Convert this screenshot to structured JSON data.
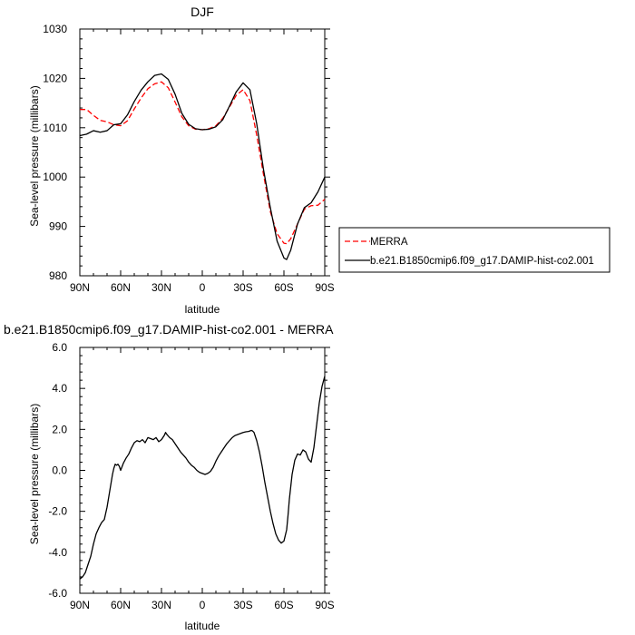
{
  "chart_data": [
    {
      "type": "line",
      "title": "DJF",
      "xlabel": "latitude",
      "ylabel": "Sea-level pressure (millibars)",
      "xlim": [
        90,
        -90
      ],
      "ylim": [
        980,
        1030
      ],
      "x_ticks": [
        90,
        60,
        30,
        0,
        -30,
        -60,
        -90
      ],
      "x_tick_labels": [
        "90N",
        "60N",
        "30N",
        "0",
        "30S",
        "60S",
        "90S"
      ],
      "y_ticks": [
        980,
        990,
        1000,
        1010,
        1020,
        1030
      ],
      "y_tick_labels": [
        "980",
        "990",
        "1000",
        "1010",
        "1020",
        "1030"
      ],
      "legend_position": "right",
      "series": [
        {
          "name": "MERRA",
          "color": "#ff0000",
          "dash": "dashed",
          "x": [
            90,
            85,
            80,
            75,
            70,
            65,
            60,
            55,
            50,
            45,
            40,
            35,
            30,
            25,
            20,
            15,
            10,
            5,
            0,
            -5,
            -10,
            -15,
            -20,
            -25,
            -30,
            -35,
            -40,
            -45,
            -50,
            -55,
            -60,
            -62,
            -65,
            -70,
            -75,
            -80,
            -85,
            -90
          ],
          "y": [
            1013.7,
            1013.7,
            1012.5,
            1011.5,
            1011.2,
            1010.6,
            1010.4,
            1011.4,
            1013.8,
            1016.0,
            1017.9,
            1018.9,
            1019.3,
            1018.1,
            1015.2,
            1012.2,
            1010.4,
            1009.7,
            1009.6,
            1009.8,
            1010.4,
            1011.9,
            1014.2,
            1016.6,
            1017.7,
            1015.5,
            1008.5,
            1000.5,
            993.0,
            988.5,
            986.6,
            986.5,
            987.5,
            990.5,
            993.5,
            994.2,
            994.3,
            995.5
          ]
        },
        {
          "name": "b.e21.B1850cmip6.f09_g17.DAMIP-hist-co2.001",
          "color": "#000000",
          "dash": "solid",
          "x": [
            90,
            85,
            80,
            75,
            70,
            65,
            60,
            55,
            50,
            45,
            40,
            35,
            30,
            25,
            20,
            15,
            10,
            5,
            0,
            -5,
            -10,
            -15,
            -20,
            -25,
            -30,
            -35,
            -40,
            -45,
            -50,
            -55,
            -60,
            -62,
            -65,
            -70,
            -75,
            -80,
            -85,
            -90
          ],
          "y": [
            1008.4,
            1008.7,
            1009.4,
            1009.1,
            1009.4,
            1010.6,
            1010.8,
            1012.6,
            1015.3,
            1017.6,
            1019.3,
            1020.6,
            1020.9,
            1019.8,
            1016.8,
            1012.9,
            1010.7,
            1009.8,
            1009.6,
            1009.7,
            1010.2,
            1011.6,
            1014.4,
            1017.3,
            1019.1,
            1017.7,
            1010.8,
            1001.5,
            993.8,
            987.0,
            983.6,
            983.3,
            985.2,
            990.5,
            993.8,
            994.8,
            997.0,
            1000.0
          ]
        }
      ]
    },
    {
      "type": "line",
      "title": "b.e21.B1850cmip6.f09_g17.DAMIP-hist-co2.001 - MERRA",
      "xlabel": "latitude",
      "ylabel": "Sea-level pressure (millibars)",
      "xlim": [
        90,
        -90
      ],
      "ylim": [
        -6.0,
        6.0
      ],
      "x_ticks": [
        90,
        60,
        30,
        0,
        -30,
        -60,
        -90
      ],
      "x_tick_labels": [
        "90N",
        "60N",
        "30N",
        "0",
        "30S",
        "60S",
        "90S"
      ],
      "y_ticks": [
        -6,
        -4,
        -2,
        0,
        2,
        4,
        6
      ],
      "y_tick_labels": [
        "-6.0",
        "-4.0",
        "-2.0",
        "0.0",
        "2.0",
        "4.0",
        "6.0"
      ],
      "series": [
        {
          "color": "#000000",
          "dash": "solid",
          "x": [
            90,
            88,
            86,
            84,
            82,
            80,
            78,
            76,
            74,
            72,
            70,
            68,
            66,
            65,
            64,
            63,
            62,
            61,
            60,
            58,
            56,
            54,
            52,
            50,
            48,
            46,
            44,
            42,
            40,
            38,
            36,
            34,
            32,
            30,
            28,
            27,
            26,
            24,
            22,
            20,
            18,
            16,
            14,
            12,
            10,
            8,
            6,
            4,
            2,
            0,
            -2,
            -4,
            -6,
            -8,
            -10,
            -12,
            -14,
            -16,
            -18,
            -20,
            -22,
            -24,
            -26,
            -28,
            -30,
            -32,
            -34,
            -36,
            -37,
            -38,
            -40,
            -42,
            -44,
            -46,
            -48,
            -50,
            -52,
            -54,
            -56,
            -58,
            -60,
            -62,
            -63,
            -64,
            -66,
            -68,
            -70,
            -72,
            -74,
            -76,
            -78,
            -80,
            -82,
            -84,
            -86,
            -88,
            -90
          ],
          "y": [
            -5.3,
            -5.2,
            -5.0,
            -4.6,
            -4.2,
            -3.6,
            -3.1,
            -2.8,
            -2.55,
            -2.4,
            -1.8,
            -1.0,
            -0.2,
            0.1,
            0.3,
            0.25,
            0.3,
            0.2,
            0.0,
            0.35,
            0.6,
            0.8,
            1.1,
            1.35,
            1.45,
            1.4,
            1.5,
            1.35,
            1.6,
            1.55,
            1.5,
            1.6,
            1.4,
            1.5,
            1.7,
            1.85,
            1.75,
            1.6,
            1.5,
            1.3,
            1.1,
            0.9,
            0.75,
            0.6,
            0.4,
            0.25,
            0.15,
            0.0,
            -0.1,
            -0.15,
            -0.2,
            -0.15,
            -0.05,
            0.15,
            0.45,
            0.7,
            0.9,
            1.1,
            1.3,
            1.45,
            1.6,
            1.7,
            1.75,
            1.8,
            1.85,
            1.88,
            1.9,
            1.95,
            1.92,
            1.85,
            1.45,
            0.9,
            0.2,
            -0.6,
            -1.3,
            -2.0,
            -2.6,
            -3.1,
            -3.4,
            -3.55,
            -3.45,
            -2.9,
            -2.2,
            -1.4,
            -0.2,
            0.5,
            0.8,
            0.75,
            1.0,
            0.9,
            0.55,
            0.4,
            1.1,
            2.2,
            3.3,
            4.1,
            4.6
          ]
        }
      ]
    }
  ]
}
